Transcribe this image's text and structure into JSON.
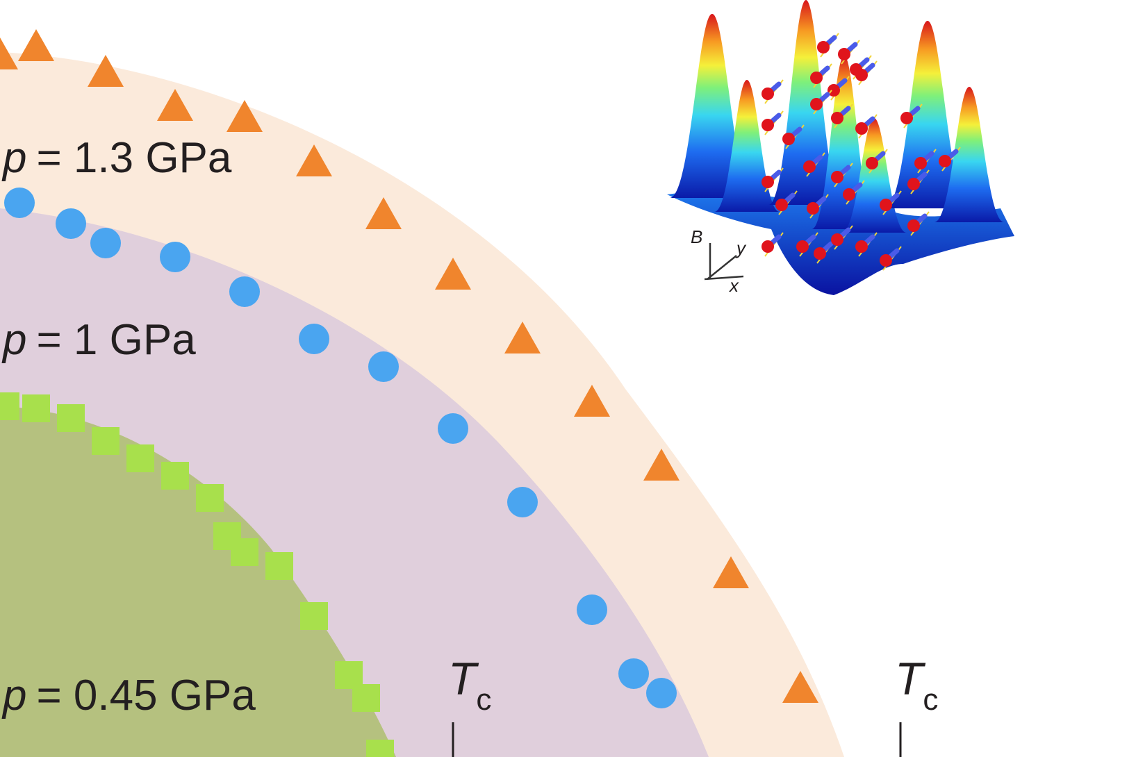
{
  "chart_data": {
    "type": "scatter",
    "title": "",
    "xlabel": "",
    "ylabel": "",
    "grid": false,
    "legend": "none",
    "series": [
      {
        "name": "p = 1.3 GPa",
        "marker": "triangle",
        "color": "#f0852d",
        "region_color": "#fbeadb",
        "label_var": "p",
        "label_value": "= 1.3 GPa"
      },
      {
        "name": "p = 1 GPa",
        "marker": "circle",
        "color": "#4aa5f0",
        "region_color": "#e0cfdc",
        "label_var": "p",
        "label_value": "= 1 GPa"
      },
      {
        "name": "p = 0.45 GPa",
        "marker": "square",
        "color": "#a8e04c",
        "region_color": "#b5c17f",
        "label_var": "p",
        "label_value": "= 0.45 GPa"
      }
    ],
    "annotations": [
      {
        "var": "T",
        "sub": "c"
      },
      {
        "var": "T",
        "sub": "c"
      }
    ],
    "inset": {
      "description_icon": "vortex-lattice-3d-surface",
      "axis_labels": [
        "B",
        "y",
        "x"
      ]
    }
  }
}
